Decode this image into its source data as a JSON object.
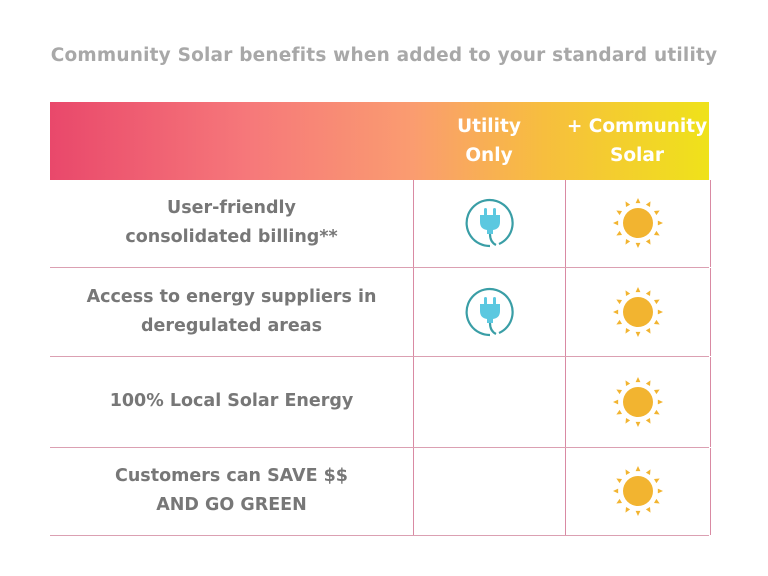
{
  "title": "Community Solar benefits when added to your standard utility",
  "header": {
    "col1": [
      "Utility",
      "Only"
    ],
    "col2": [
      "+ Community",
      "Solar"
    ]
  },
  "colors": {
    "gradient_start": "#e9486b",
    "gradient_mid": "#fa9c70",
    "gradient_end": "#efe21a",
    "plug": "#5bc8e0",
    "plug_ring": "#3a9ea6",
    "sun": "#f2b430",
    "grid": "#d98aa3",
    "text": "#777777"
  },
  "rows": [
    {
      "label": [
        "User-friendly",
        "consolidated billing**"
      ],
      "utility_only": "plug-icon",
      "community_solar": "sun-icon"
    },
    {
      "label": [
        "Access to energy suppliers in",
        "deregulated areas"
      ],
      "utility_only": "plug-icon",
      "community_solar": "sun-icon"
    },
    {
      "label": [
        "100% Local Solar Energy"
      ],
      "utility_only": null,
      "community_solar": "sun-icon"
    },
    {
      "label": [
        "Customers can SAVE $$",
        "AND GO GREEN"
      ],
      "utility_only": null,
      "community_solar": "sun-icon"
    }
  ]
}
